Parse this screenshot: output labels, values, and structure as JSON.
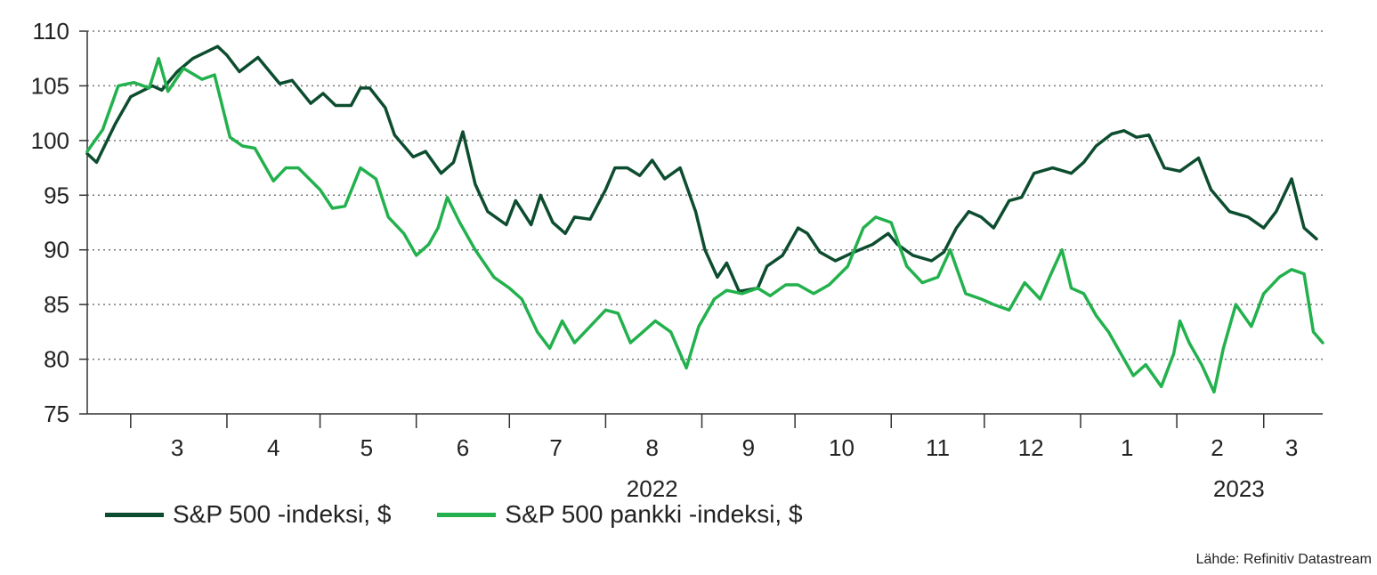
{
  "chart_data": {
    "type": "line",
    "title": "",
    "xlabel": "",
    "ylabel": "",
    "ylim": [
      75,
      110
    ],
    "yticks": [
      75,
      80,
      85,
      90,
      95,
      100,
      105,
      110
    ],
    "grid": "horizontal dotted",
    "x_range": [
      "2022-02-15",
      "2023-03-20"
    ],
    "month_ticks": [
      "2022-03-01",
      "2022-04-01",
      "2022-05-01",
      "2022-06-01",
      "2022-07-01",
      "2022-08-01",
      "2022-09-01",
      "2022-10-01",
      "2022-11-01",
      "2022-12-01",
      "2023-01-01",
      "2023-02-01",
      "2023-03-01"
    ],
    "month_labels": [
      {
        "label": "3",
        "date": "2022-03-16"
      },
      {
        "label": "4",
        "date": "2022-04-16"
      },
      {
        "label": "5",
        "date": "2022-05-16"
      },
      {
        "label": "6",
        "date": "2022-06-16"
      },
      {
        "label": "7",
        "date": "2022-07-16"
      },
      {
        "label": "8",
        "date": "2022-08-16"
      },
      {
        "label": "9",
        "date": "2022-09-16"
      },
      {
        "label": "10",
        "date": "2022-10-16"
      },
      {
        "label": "11",
        "date": "2022-11-16"
      },
      {
        "label": "12",
        "date": "2022-12-16"
      },
      {
        "label": "1",
        "date": "2023-01-16"
      },
      {
        "label": "2",
        "date": "2023-02-14"
      },
      {
        "label": "3",
        "date": "2023-03-10"
      }
    ],
    "year_labels": [
      {
        "label": "2022",
        "date": "2022-08-16"
      },
      {
        "label": "2023",
        "date": "2023-02-21"
      }
    ],
    "legend_position": "bottom-left",
    "series": [
      {
        "name": "S&P 500 -indeksi, $",
        "color": "#0d4d2f",
        "points": [
          [
            "2022-02-15",
            98.8
          ],
          [
            "2022-02-18",
            98.0
          ],
          [
            "2022-02-24",
            101.5
          ],
          [
            "2022-03-01",
            104.0
          ],
          [
            "2022-03-08",
            105.0
          ],
          [
            "2022-03-11",
            104.6
          ],
          [
            "2022-03-16",
            106.3
          ],
          [
            "2022-03-21",
            107.5
          ],
          [
            "2022-03-29",
            108.6
          ],
          [
            "2022-04-01",
            107.8
          ],
          [
            "2022-04-05",
            106.3
          ],
          [
            "2022-04-11",
            107.6
          ],
          [
            "2022-04-18",
            105.2
          ],
          [
            "2022-04-22",
            105.5
          ],
          [
            "2022-04-28",
            103.4
          ],
          [
            "2022-05-02",
            104.3
          ],
          [
            "2022-05-06",
            103.2
          ],
          [
            "2022-05-11",
            103.2
          ],
          [
            "2022-05-14",
            104.8
          ],
          [
            "2022-05-17",
            104.8
          ],
          [
            "2022-05-22",
            103.0
          ],
          [
            "2022-05-25",
            100.5
          ],
          [
            "2022-05-31",
            98.5
          ],
          [
            "2022-06-04",
            99.0
          ],
          [
            "2022-06-09",
            97.0
          ],
          [
            "2022-06-13",
            98.0
          ],
          [
            "2022-06-16",
            100.8
          ],
          [
            "2022-06-20",
            96.0
          ],
          [
            "2022-06-24",
            93.5
          ],
          [
            "2022-06-30",
            92.3
          ],
          [
            "2022-07-03",
            94.5
          ],
          [
            "2022-07-08",
            92.3
          ],
          [
            "2022-07-11",
            95.0
          ],
          [
            "2022-07-15",
            92.5
          ],
          [
            "2022-07-19",
            91.5
          ],
          [
            "2022-07-22",
            93.0
          ],
          [
            "2022-07-27",
            92.8
          ],
          [
            "2022-08-01",
            95.5
          ],
          [
            "2022-08-04",
            97.5
          ],
          [
            "2022-08-08",
            97.5
          ],
          [
            "2022-08-12",
            96.8
          ],
          [
            "2022-08-16",
            98.2
          ],
          [
            "2022-08-20",
            96.5
          ],
          [
            "2022-08-25",
            97.5
          ],
          [
            "2022-08-30",
            93.5
          ],
          [
            "2022-09-02",
            90.0
          ],
          [
            "2022-09-06",
            87.5
          ],
          [
            "2022-09-09",
            88.8
          ],
          [
            "2022-09-13",
            86.2
          ],
          [
            "2022-09-19",
            86.5
          ],
          [
            "2022-09-22",
            88.5
          ],
          [
            "2022-09-27",
            89.5
          ],
          [
            "2022-10-02",
            92.0
          ],
          [
            "2022-10-05",
            91.5
          ],
          [
            "2022-10-09",
            89.8
          ],
          [
            "2022-10-14",
            89.0
          ],
          [
            "2022-10-20",
            89.8
          ],
          [
            "2022-10-26",
            90.5
          ],
          [
            "2022-10-31",
            91.5
          ],
          [
            "2022-11-03",
            90.5
          ],
          [
            "2022-11-08",
            89.5
          ],
          [
            "2022-11-14",
            89.0
          ],
          [
            "2022-11-18",
            89.8
          ],
          [
            "2022-11-22",
            92.0
          ],
          [
            "2022-11-26",
            93.5
          ],
          [
            "2022-11-30",
            93.0
          ],
          [
            "2022-12-04",
            92.0
          ],
          [
            "2022-12-09",
            94.5
          ],
          [
            "2022-12-13",
            94.8
          ],
          [
            "2022-12-17",
            97.0
          ],
          [
            "2022-12-23",
            97.5
          ],
          [
            "2022-12-29",
            97.0
          ],
          [
            "2023-01-02",
            98.0
          ],
          [
            "2023-01-06",
            99.5
          ],
          [
            "2023-01-11",
            100.6
          ],
          [
            "2023-01-15",
            100.9
          ],
          [
            "2023-01-19",
            100.3
          ],
          [
            "2023-01-23",
            100.5
          ],
          [
            "2023-01-28",
            97.5
          ],
          [
            "2023-02-02",
            97.2
          ],
          [
            "2023-02-08",
            98.4
          ],
          [
            "2023-02-12",
            95.5
          ],
          [
            "2023-02-18",
            93.5
          ],
          [
            "2023-02-24",
            93.0
          ],
          [
            "2023-03-01",
            92.0
          ],
          [
            "2023-03-05",
            93.5
          ],
          [
            "2023-03-10",
            96.5
          ],
          [
            "2023-03-14",
            92.0
          ],
          [
            "2023-03-18",
            91.0
          ]
        ]
      },
      {
        "name": "S&P 500 pankki -indeksi, $",
        "color": "#22b14c",
        "points": [
          [
            "2022-02-15",
            99.0
          ],
          [
            "2022-02-20",
            101.0
          ],
          [
            "2022-02-25",
            105.0
          ],
          [
            "2022-03-02",
            105.3
          ],
          [
            "2022-03-07",
            104.8
          ],
          [
            "2022-03-10",
            107.5
          ],
          [
            "2022-03-13",
            104.5
          ],
          [
            "2022-03-18",
            106.6
          ],
          [
            "2022-03-24",
            105.6
          ],
          [
            "2022-03-28",
            106.0
          ],
          [
            "2022-04-02",
            100.3
          ],
          [
            "2022-04-06",
            99.5
          ],
          [
            "2022-04-10",
            99.3
          ],
          [
            "2022-04-16",
            96.3
          ],
          [
            "2022-04-20",
            97.5
          ],
          [
            "2022-04-24",
            97.5
          ],
          [
            "2022-05-01",
            95.5
          ],
          [
            "2022-05-05",
            93.8
          ],
          [
            "2022-05-09",
            94.0
          ],
          [
            "2022-05-14",
            97.5
          ],
          [
            "2022-05-19",
            96.5
          ],
          [
            "2022-05-23",
            93.0
          ],
          [
            "2022-05-28",
            91.5
          ],
          [
            "2022-06-01",
            89.5
          ],
          [
            "2022-06-05",
            90.5
          ],
          [
            "2022-06-08",
            92.0
          ],
          [
            "2022-06-11",
            94.8
          ],
          [
            "2022-06-15",
            92.5
          ],
          [
            "2022-06-20",
            90.0
          ],
          [
            "2022-06-26",
            87.5
          ],
          [
            "2022-07-01",
            86.5
          ],
          [
            "2022-07-05",
            85.5
          ],
          [
            "2022-07-10",
            82.5
          ],
          [
            "2022-07-14",
            81.0
          ],
          [
            "2022-07-18",
            83.5
          ],
          [
            "2022-07-22",
            81.5
          ],
          [
            "2022-07-27",
            83.0
          ],
          [
            "2022-08-01",
            84.5
          ],
          [
            "2022-08-05",
            84.2
          ],
          [
            "2022-08-09",
            81.5
          ],
          [
            "2022-08-13",
            82.5
          ],
          [
            "2022-08-17",
            83.5
          ],
          [
            "2022-08-22",
            82.5
          ],
          [
            "2022-08-27",
            79.2
          ],
          [
            "2022-08-31",
            83.0
          ],
          [
            "2022-09-05",
            85.5
          ],
          [
            "2022-09-09",
            86.3
          ],
          [
            "2022-09-14",
            86.0
          ],
          [
            "2022-09-19",
            86.5
          ],
          [
            "2022-09-23",
            85.8
          ],
          [
            "2022-09-28",
            86.8
          ],
          [
            "2022-10-02",
            86.8
          ],
          [
            "2022-10-07",
            86.0
          ],
          [
            "2022-10-12",
            86.8
          ],
          [
            "2022-10-18",
            88.5
          ],
          [
            "2022-10-23",
            92.0
          ],
          [
            "2022-10-27",
            93.0
          ],
          [
            "2022-11-01",
            92.5
          ],
          [
            "2022-11-06",
            88.5
          ],
          [
            "2022-11-11",
            87.0
          ],
          [
            "2022-11-16",
            87.5
          ],
          [
            "2022-11-20",
            90.0
          ],
          [
            "2022-11-25",
            86.0
          ],
          [
            "2022-11-30",
            85.5
          ],
          [
            "2022-12-04",
            85.0
          ],
          [
            "2022-12-09",
            84.5
          ],
          [
            "2022-12-14",
            87.0
          ],
          [
            "2022-12-19",
            85.5
          ],
          [
            "2022-12-22",
            87.5
          ],
          [
            "2022-12-26",
            90.0
          ],
          [
            "2022-12-29",
            86.5
          ],
          [
            "2023-01-02",
            86.0
          ],
          [
            "2023-01-06",
            84.0
          ],
          [
            "2023-01-10",
            82.5
          ],
          [
            "2023-01-14",
            80.5
          ],
          [
            "2023-01-18",
            78.5
          ],
          [
            "2023-01-22",
            79.5
          ],
          [
            "2023-01-27",
            77.5
          ],
          [
            "2023-01-31",
            80.5
          ],
          [
            "2023-02-02",
            83.5
          ],
          [
            "2023-02-05",
            81.5
          ],
          [
            "2023-02-09",
            79.5
          ],
          [
            "2023-02-13",
            77.0
          ],
          [
            "2023-02-16",
            81.0
          ],
          [
            "2023-02-20",
            85.0
          ],
          [
            "2023-02-25",
            83.0
          ],
          [
            "2023-03-01",
            86.0
          ],
          [
            "2023-03-06",
            87.5
          ],
          [
            "2023-03-10",
            88.2
          ],
          [
            "2023-03-14",
            87.8
          ],
          [
            "2023-03-17",
            82.5
          ],
          [
            "2023-03-20",
            81.5
          ]
        ]
      }
    ]
  },
  "legend": {
    "series1": "S&P 500 -indeksi, $",
    "series2": "S&P 500 pankki -indeksi, $"
  },
  "source": "Lähde: Refinitiv Datastream"
}
